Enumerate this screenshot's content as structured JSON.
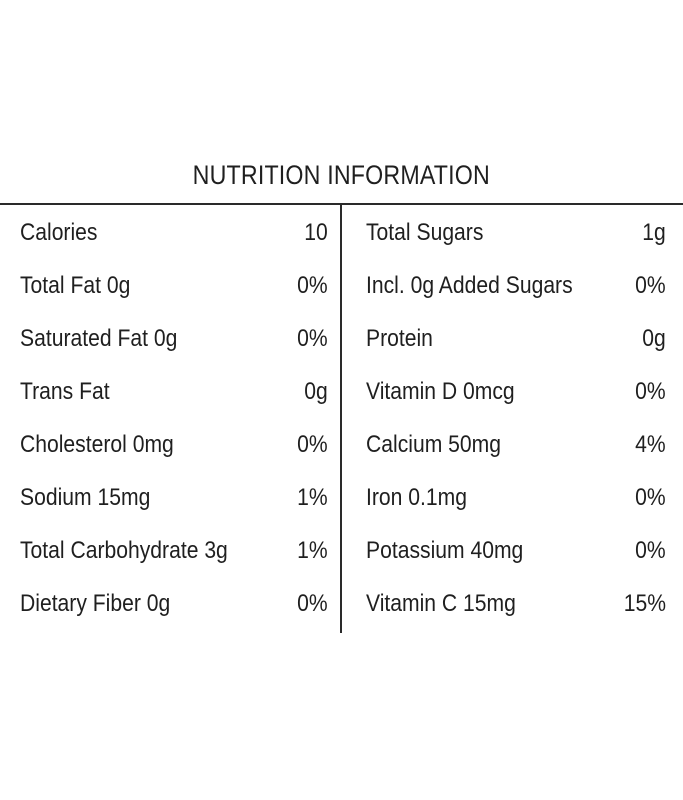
{
  "title": "NUTRITION INFORMATION",
  "left_rows": [
    {
      "label": "Calories",
      "value": "10"
    },
    {
      "label": "Total Fat 0g",
      "value": "0%"
    },
    {
      "label": "Saturated Fat 0g",
      "value": "0%"
    },
    {
      "label": "Trans Fat",
      "value": "0g"
    },
    {
      "label": "Cholesterol 0mg",
      "value": "0%"
    },
    {
      "label": "Sodium 15mg",
      "value": "1%"
    },
    {
      "label": "Total Carbohydrate 3g",
      "value": "1%"
    },
    {
      "label": "Dietary Fiber 0g",
      "value": "0%"
    }
  ],
  "right_rows": [
    {
      "label": "Total Sugars",
      "value": "1g"
    },
    {
      "label": "Incl. 0g Added Sugars",
      "value": "0%"
    },
    {
      "label": "Protein",
      "value": "0g"
    },
    {
      "label": "Vitamin D 0mcg",
      "value": "0%"
    },
    {
      "label": "Calcium 50mg",
      "value": "4%"
    },
    {
      "label": "Iron 0.1mg",
      "value": "0%"
    },
    {
      "label": "Potassium 40mg",
      "value": "0%"
    },
    {
      "label": "Vitamin C 15mg",
      "value": "15%"
    }
  ]
}
